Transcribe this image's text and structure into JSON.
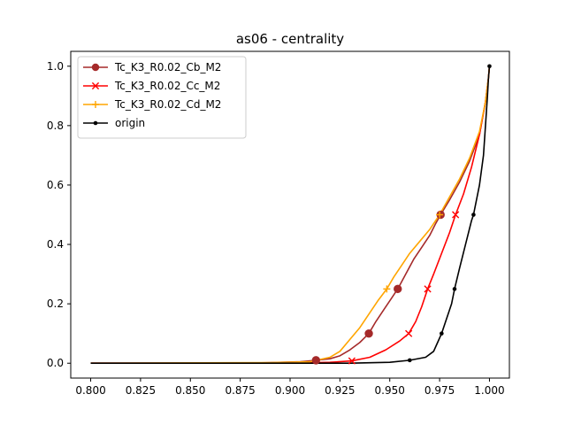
{
  "chart_data": {
    "type": "line",
    "title": "as06 - centrality",
    "xlabel": "",
    "ylabel": "",
    "xlim": [
      0.79,
      1.01
    ],
    "ylim": [
      -0.05,
      1.05
    ],
    "x_ticks": [
      "0.800",
      "0.825",
      "0.850",
      "0.875",
      "0.900",
      "0.925",
      "0.950",
      "0.975",
      "1.000"
    ],
    "y_ticks": [
      "0.0",
      "0.2",
      "0.4",
      "0.6",
      "0.8",
      "1.0"
    ],
    "grid": false,
    "legend_position": "upper-left",
    "series": [
      {
        "name": "Tc_K3_R0.02_Cb_M2",
        "color": "#a52a2a",
        "marker": "circle",
        "points": [
          [
            0.8,
            0.0
          ],
          [
            0.88,
            0.0
          ],
          [
            0.905,
            0.005
          ],
          [
            0.913,
            0.01
          ],
          [
            0.92,
            0.015
          ],
          [
            0.925,
            0.025
          ],
          [
            0.93,
            0.045
          ],
          [
            0.935,
            0.07
          ],
          [
            0.9395,
            0.1
          ],
          [
            0.943,
            0.14
          ],
          [
            0.947,
            0.18
          ],
          [
            0.951,
            0.22
          ],
          [
            0.954,
            0.25
          ],
          [
            0.958,
            0.3
          ],
          [
            0.962,
            0.35
          ],
          [
            0.966,
            0.39
          ],
          [
            0.97,
            0.43
          ],
          [
            0.973,
            0.47
          ],
          [
            0.9755,
            0.5
          ],
          [
            0.98,
            0.55
          ],
          [
            0.985,
            0.61
          ],
          [
            0.99,
            0.68
          ],
          [
            0.995,
            0.77
          ],
          [
            0.998,
            0.88
          ],
          [
            0.9995,
            0.96
          ],
          [
            1.0,
            1.0
          ]
        ],
        "marker_points": [
          [
            0.913,
            0.01
          ],
          [
            0.9395,
            0.1
          ],
          [
            0.954,
            0.25
          ],
          [
            0.9755,
            0.5
          ]
        ]
      },
      {
        "name": "Tc_K3_R0.02_Cc_M2",
        "color": "#ff0000",
        "marker": "x",
        "points": [
          [
            0.8,
            0.0
          ],
          [
            0.9,
            0.0
          ],
          [
            0.92,
            0.003
          ],
          [
            0.931,
            0.008
          ],
          [
            0.94,
            0.02
          ],
          [
            0.948,
            0.045
          ],
          [
            0.955,
            0.075
          ],
          [
            0.9595,
            0.1
          ],
          [
            0.963,
            0.14
          ],
          [
            0.966,
            0.19
          ],
          [
            0.969,
            0.25
          ],
          [
            0.972,
            0.3
          ],
          [
            0.976,
            0.37
          ],
          [
            0.98,
            0.44
          ],
          [
            0.983,
            0.5
          ],
          [
            0.987,
            0.57
          ],
          [
            0.991,
            0.66
          ],
          [
            0.995,
            0.77
          ],
          [
            0.998,
            0.88
          ],
          [
            0.9995,
            0.96
          ],
          [
            1.0,
            1.0
          ]
        ],
        "marker_points": [
          [
            0.931,
            0.008
          ],
          [
            0.9595,
            0.1
          ],
          [
            0.969,
            0.25
          ],
          [
            0.983,
            0.5
          ]
        ]
      },
      {
        "name": "Tc_K3_R0.02_Cd_M2",
        "color": "#ffa500",
        "marker": "plus",
        "points": [
          [
            0.8,
            0.0
          ],
          [
            0.89,
            0.002
          ],
          [
            0.91,
            0.005
          ],
          [
            0.92,
            0.02
          ],
          [
            0.925,
            0.04
          ],
          [
            0.93,
            0.08
          ],
          [
            0.935,
            0.12
          ],
          [
            0.94,
            0.17
          ],
          [
            0.944,
            0.21
          ],
          [
            0.9485,
            0.25
          ],
          [
            0.952,
            0.29
          ],
          [
            0.956,
            0.33
          ],
          [
            0.96,
            0.37
          ],
          [
            0.965,
            0.41
          ],
          [
            0.97,
            0.45
          ],
          [
            0.975,
            0.5
          ],
          [
            0.98,
            0.56
          ],
          [
            0.985,
            0.62
          ],
          [
            0.99,
            0.69
          ],
          [
            0.995,
            0.78
          ],
          [
            0.998,
            0.88
          ],
          [
            0.9995,
            0.96
          ],
          [
            1.0,
            1.0
          ]
        ],
        "marker_points": [
          [
            0.9485,
            0.25
          ],
          [
            0.975,
            0.5
          ]
        ]
      },
      {
        "name": "origin",
        "color": "#000000",
        "marker": "dot",
        "points": [
          [
            0.8,
            0.0
          ],
          [
            0.9,
            0.0
          ],
          [
            0.93,
            0.0
          ],
          [
            0.95,
            0.003
          ],
          [
            0.96,
            0.01
          ],
          [
            0.968,
            0.02
          ],
          [
            0.972,
            0.04
          ],
          [
            0.974,
            0.07
          ],
          [
            0.976,
            0.1
          ],
          [
            0.978,
            0.14
          ],
          [
            0.981,
            0.2
          ],
          [
            0.9825,
            0.25
          ],
          [
            0.985,
            0.32
          ],
          [
            0.988,
            0.4
          ],
          [
            0.991,
            0.48
          ],
          [
            0.992,
            0.5
          ],
          [
            0.995,
            0.6
          ],
          [
            0.997,
            0.7
          ],
          [
            0.998,
            0.8
          ],
          [
            0.999,
            0.9
          ],
          [
            0.9995,
            0.96
          ],
          [
            1.0,
            1.0
          ]
        ],
        "marker_points": [
          [
            0.96,
            0.01
          ],
          [
            0.976,
            0.1
          ],
          [
            0.9825,
            0.25
          ],
          [
            0.992,
            0.5
          ],
          [
            1.0,
            1.0
          ]
        ]
      }
    ]
  }
}
